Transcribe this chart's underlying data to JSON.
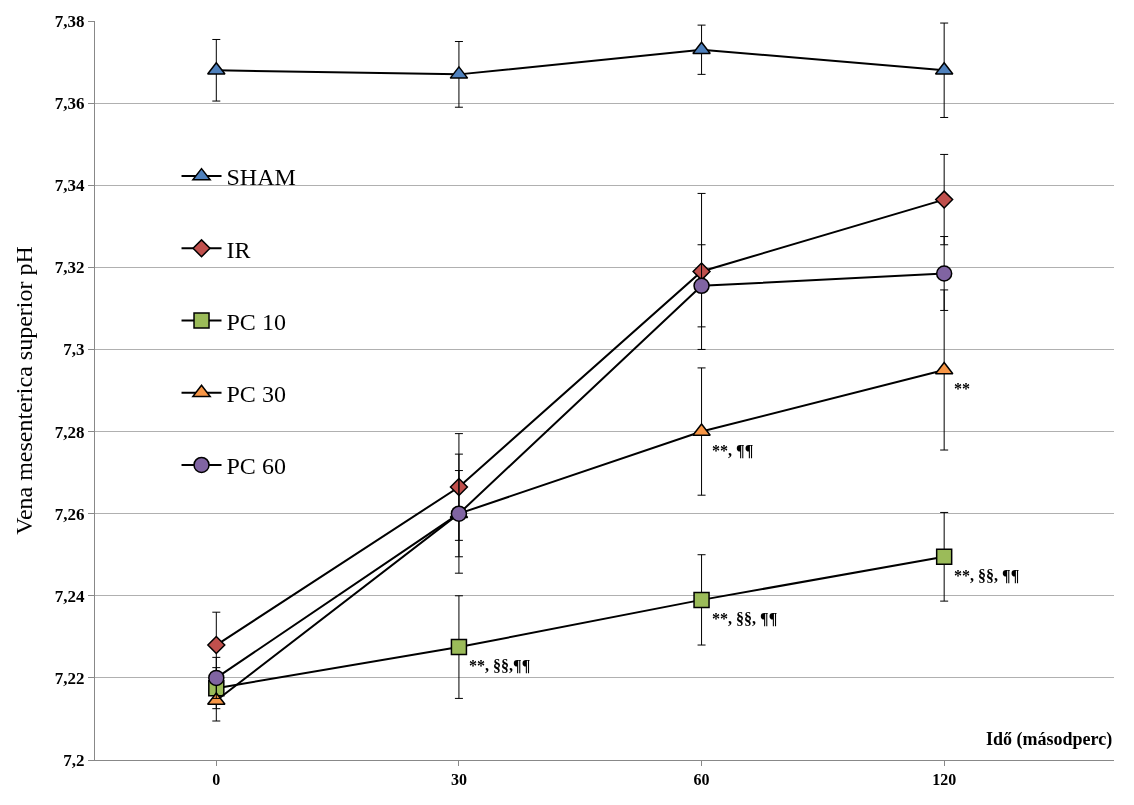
{
  "chart_data": {
    "type": "line",
    "xlabel": "Idő (másodperc)",
    "ylabel": "Vena mesenterica superior pH",
    "categories": [
      "0",
      "30",
      "60",
      "120"
    ],
    "ylim": [
      7.2,
      7.38
    ],
    "yticks": [
      {
        "value": 7.2,
        "label": "7,2"
      },
      {
        "value": 7.22,
        "label": "7,22"
      },
      {
        "value": 7.24,
        "label": "7,24"
      },
      {
        "value": 7.26,
        "label": "7,26"
      },
      {
        "value": 7.28,
        "label": "7,28"
      },
      {
        "value": 7.3,
        "label": "7,3"
      },
      {
        "value": 7.32,
        "label": "7,32"
      },
      {
        "value": 7.34,
        "label": "7,34"
      },
      {
        "value": 7.36,
        "label": "7,36"
      },
      {
        "value": 7.38,
        "label": "7,38"
      }
    ],
    "grid": "y",
    "legend": "top left",
    "line_style": "solid",
    "series": [
      {
        "name": "SHAM",
        "color": "#4f81bd",
        "marker": "triangle",
        "values": [
          7.368,
          7.367,
          7.373,
          7.368
        ],
        "errors": [
          0.0075,
          0.008,
          0.006,
          0.0115
        ]
      },
      {
        "name": "IR",
        "color": "#c0504d",
        "marker": "diamond",
        "values": [
          7.228,
          7.2665,
          7.319,
          7.3365
        ],
        "errors": [
          0.008,
          0.013,
          0.019,
          0.011
        ]
      },
      {
        "name": "PC 10",
        "color": "#9bbb59",
        "marker": "square",
        "values": [
          7.2175,
          7.2275,
          7.239,
          7.2495
        ],
        "errors": [
          0.005,
          0.0125,
          0.011,
          0.0108
        ]
      },
      {
        "name": "PC 30",
        "color": "#f79646",
        "marker": "triangle",
        "values": [
          7.2145,
          7.26,
          7.28,
          7.295
        ],
        "errors": [
          0.005,
          0.0105,
          0.0155,
          0.0195
        ]
      },
      {
        "name": "PC 60",
        "color": "#8064a2",
        "marker": "circle",
        "values": [
          7.22,
          7.26,
          7.3155,
          7.3185
        ],
        "errors": [
          0.005,
          0.0145,
          0.01,
          0.009
        ]
      }
    ],
    "annotations": [
      {
        "text": "**, §§,¶¶",
        "x": "30",
        "y": 7.2275
      },
      {
        "text": "**, ¶¶",
        "x": "60",
        "y": 7.28
      },
      {
        "text": "**, §§, ¶¶",
        "x": "60",
        "y": 7.239
      },
      {
        "text": "**",
        "x": "120",
        "y": 7.295
      },
      {
        "text": "**, §§, ¶¶",
        "x": "120",
        "y": 7.2495
      }
    ]
  }
}
